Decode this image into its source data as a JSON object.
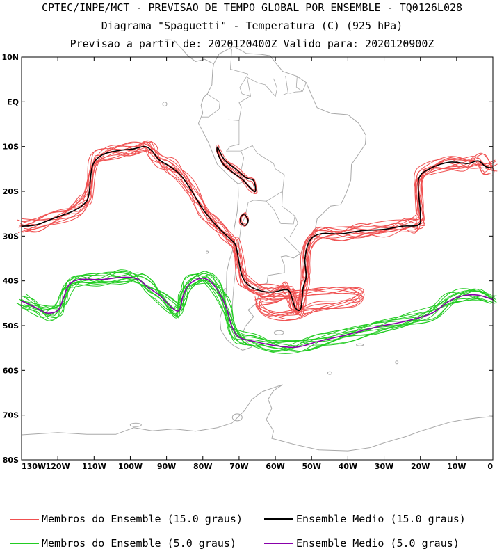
{
  "header": {
    "line1": "CPTEC/INPE/MCT - PREVISAO DE TEMPO GLOBAL POR ENSEMBLE - TQ0126L028",
    "line2": "Diagrama \"Spaguetti\" - Temperatura (C) (925 hPa)",
    "line3": "Previsao a partir de: 2020120400Z  Valido para: 2020120900Z"
  },
  "map": {
    "lat_labels": [
      "10N",
      "EQ",
      "10S",
      "20S",
      "30S",
      "40S",
      "50S",
      "60S",
      "70S",
      "80S"
    ],
    "lon_labels": [
      "130W",
      "120W",
      "110W",
      "100W",
      "90W",
      "80W",
      "70W",
      "60W",
      "50W",
      "40W",
      "30W",
      "20W",
      "10W",
      "0"
    ],
    "lat_range": [
      -80,
      10
    ],
    "lon_range": [
      -130,
      0
    ],
    "colors": {
      "warm_member": "#f05050",
      "warm_mean": "#000000",
      "cold_member": "#22cc22",
      "cold_mean": "#8800aa",
      "land": "#a8a8a8"
    }
  },
  "legend": {
    "items": [
      {
        "label": "Membros do Ensemble (15.0 graus)",
        "color": "#f05050"
      },
      {
        "label": "Ensemble Medio (15.0 graus)",
        "color": "#000000"
      },
      {
        "label": "Membros do Ensemble (5.0 graus)",
        "color": "#22cc22"
      },
      {
        "label": "Ensemble Medio (5.0 graus)",
        "color": "#8800aa"
      }
    ]
  }
}
